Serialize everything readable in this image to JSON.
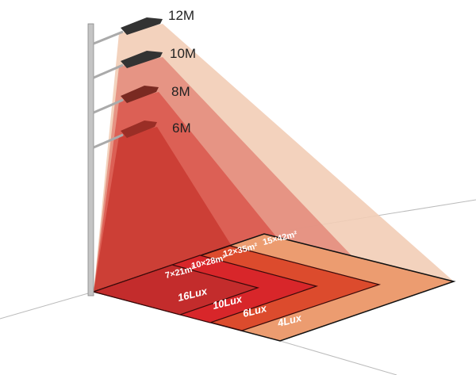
{
  "heights": [
    "12M",
    "10M",
    "8M",
    "6M"
  ],
  "areas": [
    "15×42m²",
    "12×35m²",
    "10×28m²",
    "7×21m²"
  ],
  "lux": [
    "4Lux",
    "6Lux",
    "10Lux",
    "16Lux"
  ],
  "colors": {
    "cone_12m": "#f2cdb6",
    "cone_10m": "#e3897a",
    "cone_8m": "#d9574c",
    "cone_6m": "#c93a31",
    "zone_4lux": "#ec9c70",
    "zone_6lux": "#dc4b2d",
    "zone_10lux": "#d8262a",
    "zone_16lux": "#c32c2c"
  }
}
